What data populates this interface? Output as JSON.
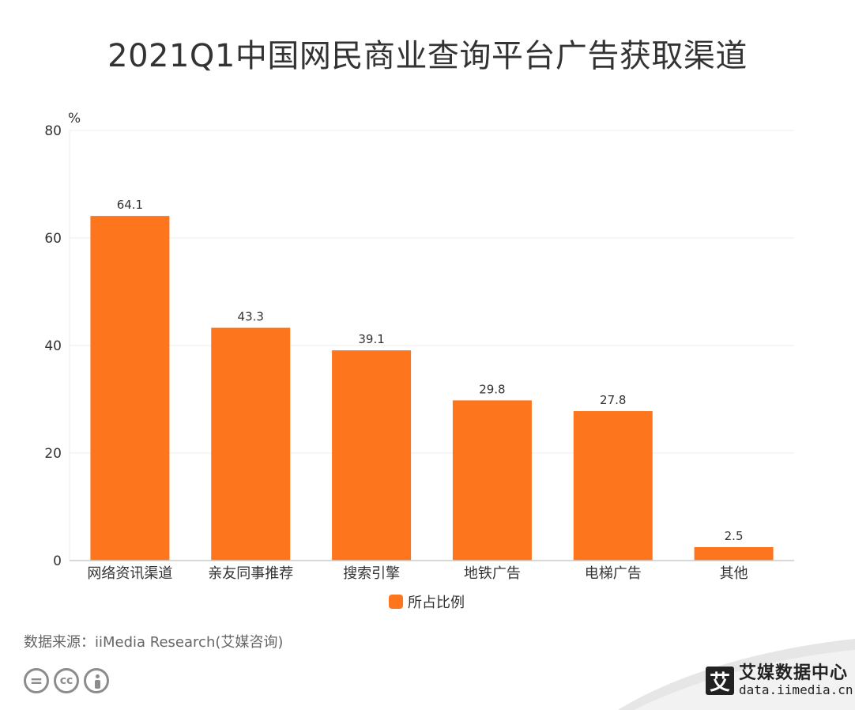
{
  "title": "2021Q1中国网民商业查询平台广告获取渠道",
  "source": "数据来源：iiMedia Research(艾媒咨询)",
  "brand": {
    "name": "艾媒数据中心",
    "url": "data.iimedia.cn",
    "logo_char": "艾"
  },
  "cc_icons": [
    "nd-icon",
    "cc-icon",
    "by-icon"
  ],
  "colors": {
    "bar": "#fd751d",
    "grid": "#eeeeee",
    "axis": "#cccccc",
    "text": "#333333"
  },
  "chart_data": {
    "type": "bar",
    "categories": [
      "网络资讯渠道",
      "亲友同事推荐",
      "搜索引擎",
      "地铁广告",
      "电梯广告",
      "其他"
    ],
    "series": [
      {
        "name": "所占比例",
        "values": [
          64.1,
          43.3,
          39.1,
          29.8,
          27.8,
          2.5
        ]
      }
    ],
    "value_labels": [
      "64.1",
      "43.3",
      "39.1",
      "29.8",
      "27.8",
      "2.5"
    ],
    "ylabel": "%",
    "ylim": [
      0,
      80
    ],
    "yticks": [
      0,
      20,
      40,
      60,
      80
    ],
    "grid": true,
    "legend_position": "bottom-center"
  }
}
